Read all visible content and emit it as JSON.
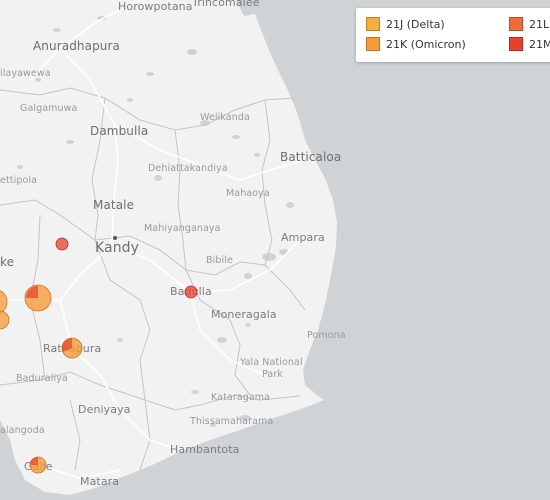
{
  "colors": {
    "sea": "#cfd3d6",
    "land": "#f2f2f2",
    "lakes": "#cfd3d6",
    "borders": "#c8c8c8",
    "roads": "#ffffff"
  },
  "legend": {
    "items": [
      {
        "label": "21J (Delta)",
        "color": "#f6ad3c"
      },
      {
        "label": "21K (Omicron)",
        "color": "#f89a3a"
      },
      {
        "label": "21L",
        "color": "#f06a3a"
      },
      {
        "label": "21M",
        "color": "#e8402e"
      }
    ]
  },
  "places": [
    {
      "id": "horowpotana",
      "label": "Horowpotana"
    },
    {
      "id": "trincomalee",
      "label": "Trincomalee"
    },
    {
      "id": "anuradhapura",
      "label": "Anuradhapura"
    },
    {
      "id": "wilpattu",
      "label": "ilayawewa"
    },
    {
      "id": "galgamuwa",
      "label": "Galgamuwa"
    },
    {
      "id": "dambulla",
      "label": "Dambulla"
    },
    {
      "id": "welikanda",
      "label": "Welikanda"
    },
    {
      "id": "batticaloa",
      "label": "Batticaloa"
    },
    {
      "id": "dehiattakandiya",
      "label": "Dehiattakandiya"
    },
    {
      "id": "kurunegala",
      "label": "ettipola"
    },
    {
      "id": "mahaoya",
      "label": "Mahaoya"
    },
    {
      "id": "matale",
      "label": "Matale"
    },
    {
      "id": "mahiyanganaya",
      "label": "Mahiyanganaya"
    },
    {
      "id": "kandy",
      "label": "Kandy"
    },
    {
      "id": "ampara",
      "label": "Ampara"
    },
    {
      "id": "colombo_frag",
      "label": "ke"
    },
    {
      "id": "bibile",
      "label": "Bibile"
    },
    {
      "id": "badulla",
      "label": "Badulla"
    },
    {
      "id": "moneragala",
      "label": "Moneragala"
    },
    {
      "id": "pomona",
      "label": "Pomona"
    },
    {
      "id": "ratnapura",
      "label": "Ratnapura"
    },
    {
      "id": "yala",
      "label": "Yala National"
    },
    {
      "id": "yala_park",
      "label": "Park"
    },
    {
      "id": "baduraliya",
      "label": "Baduraliya"
    },
    {
      "id": "kataragama",
      "label": "Kataragama"
    },
    {
      "id": "deniyaya",
      "label": "Deniyaya"
    },
    {
      "id": "thissamaharama",
      "label": "Thissamaharama"
    },
    {
      "id": "elpitiya",
      "label": "alangoda"
    },
    {
      "id": "hambantota",
      "label": "Hambantota"
    },
    {
      "id": "galle",
      "label": "Galle"
    },
    {
      "id": "matara",
      "label": "Matara"
    }
  ],
  "markers": [
    {
      "place": "Kandy region NW",
      "variant": "21M",
      "color": "#e8402e",
      "count": 1
    },
    {
      "place": "West edge upper",
      "variant": "21K (Omicron)",
      "color": "#f89a3a",
      "count": 3
    },
    {
      "place": "West edge lower",
      "variant": "21K (Omicron)",
      "color": "#f89a3a",
      "count": 2
    },
    {
      "place": "Kegalle area",
      "variant": "21K (Omicron)",
      "color": "#f89a3a",
      "count": 5
    },
    {
      "place": "Kegalle area",
      "variant": "21M",
      "color": "#e8402e",
      "count": 1
    },
    {
      "place": "Badulla",
      "variant": "21M",
      "color": "#e8402e",
      "count": 1
    },
    {
      "place": "Ratnapura",
      "variant": "21K (Omicron)",
      "color": "#f89a3a",
      "count": 3
    },
    {
      "place": "Ratnapura",
      "variant": "21M",
      "color": "#e8402e",
      "count": 1
    },
    {
      "place": "Galle",
      "variant": "21K (Omicron)",
      "color": "#f89a3a",
      "count": 2
    },
    {
      "place": "Galle",
      "variant": "21M",
      "color": "#e8402e",
      "count": 1
    }
  ]
}
